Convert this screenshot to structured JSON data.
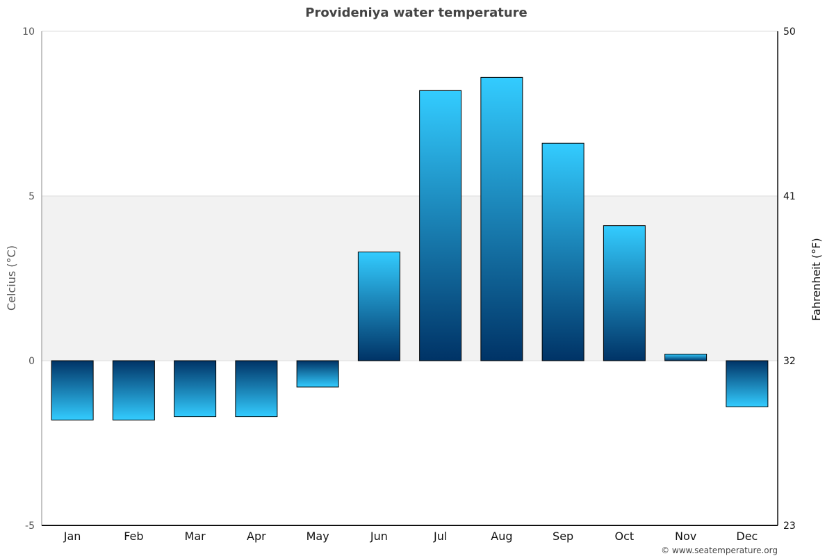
{
  "chart_data": {
    "type": "bar",
    "title": "Provideniya water temperature",
    "xlabel": "",
    "ylabel": "Celcius (°C)",
    "ylabel_right": "Fahrenheit (°F)",
    "ylim": [
      -5,
      10
    ],
    "yticks": [
      "10",
      "5",
      "0",
      "-5"
    ],
    "yticks_values": [
      10,
      5,
      0,
      -5
    ],
    "yticks_right": [
      "50",
      "41",
      "32",
      "23"
    ],
    "highlight_band": [
      0,
      5
    ],
    "grid": true,
    "categories": [
      "Jan",
      "Feb",
      "Mar",
      "Apr",
      "May",
      "Jun",
      "Jul",
      "Aug",
      "Sep",
      "Oct",
      "Nov",
      "Dec"
    ],
    "values": [
      -1.8,
      -1.8,
      -1.7,
      -1.7,
      -0.8,
      3.3,
      8.2,
      8.6,
      6.6,
      4.1,
      0.2,
      -1.4
    ],
    "colors": {
      "bar_dark": "#003366",
      "bar_light": "#33ccff",
      "band": "#f2f2f2",
      "grid": "#dddddd"
    }
  },
  "credit": "© www.seatemperature.org"
}
